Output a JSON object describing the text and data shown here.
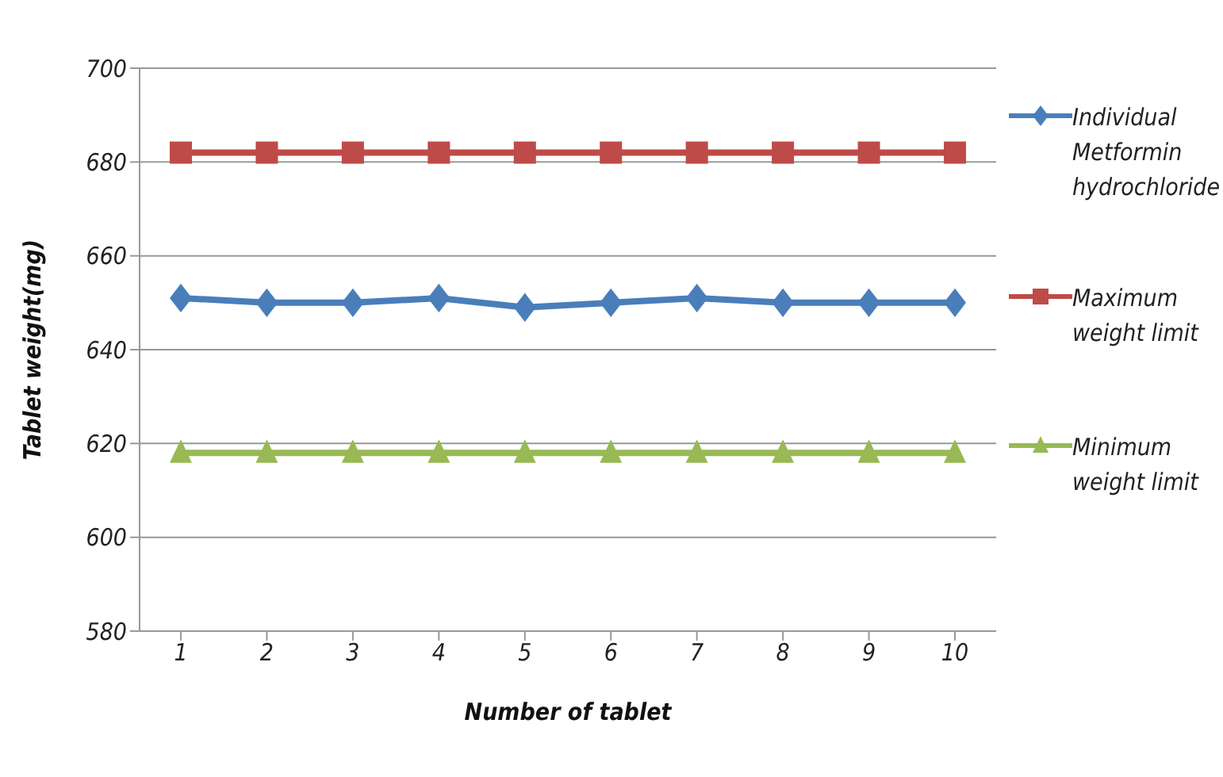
{
  "chart_data": {
    "type": "line",
    "xlabel": "Number of tablet",
    "ylabel": "Tablet weight(mg)",
    "categories": [
      "1",
      "2",
      "3",
      "4",
      "5",
      "6",
      "7",
      "8",
      "9",
      "10"
    ],
    "series": [
      {
        "name": "Individual Metformin hydrochloride",
        "color": "#4a7ebb",
        "marker": "diamond",
        "values": [
          651,
          650,
          650,
          651,
          649,
          650,
          651,
          650,
          650,
          650
        ]
      },
      {
        "name": "Maximum weight limit",
        "color": "#be4b48",
        "marker": "square",
        "values": [
          682,
          682,
          682,
          682,
          682,
          682,
          682,
          682,
          682,
          682
        ]
      },
      {
        "name": "Minimum weight limit",
        "color": "#98b954",
        "marker": "triangle",
        "values": [
          618,
          618,
          618,
          618,
          618,
          618,
          618,
          618,
          618,
          618
        ]
      }
    ],
    "ylim": [
      580,
      700
    ],
    "yticks": [
      580,
      600,
      620,
      640,
      660,
      680,
      700
    ],
    "grid": "y",
    "legend": "right"
  }
}
